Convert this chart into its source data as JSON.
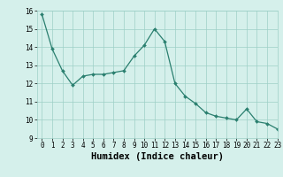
{
  "x": [
    0,
    1,
    2,
    3,
    4,
    5,
    6,
    7,
    8,
    9,
    10,
    11,
    12,
    13,
    14,
    15,
    16,
    17,
    18,
    19,
    20,
    21,
    22,
    23
  ],
  "y": [
    15.8,
    13.9,
    12.7,
    11.9,
    12.4,
    12.5,
    12.5,
    12.6,
    12.7,
    13.5,
    14.1,
    15.0,
    14.3,
    12.0,
    11.3,
    10.9,
    10.4,
    10.2,
    10.1,
    10.0,
    10.6,
    9.9,
    9.8,
    9.5
  ],
  "xlabel": "Humidex (Indice chaleur)",
  "ylim": [
    9,
    16
  ],
  "xlim": [
    -0.5,
    23
  ],
  "yticks": [
    9,
    10,
    11,
    12,
    13,
    14,
    15,
    16
  ],
  "xticks": [
    0,
    1,
    2,
    3,
    4,
    5,
    6,
    7,
    8,
    9,
    10,
    11,
    12,
    13,
    14,
    15,
    16,
    17,
    18,
    19,
    20,
    21,
    22,
    23
  ],
  "line_color": "#2a7f6f",
  "marker_color": "#2a7f6f",
  "bg_color": "#d5f0eb",
  "grid_color": "#9ecfc7",
  "tick_label_fontsize": 5.5,
  "xlabel_fontsize": 7.5,
  "xlabel_fontweight": "bold"
}
